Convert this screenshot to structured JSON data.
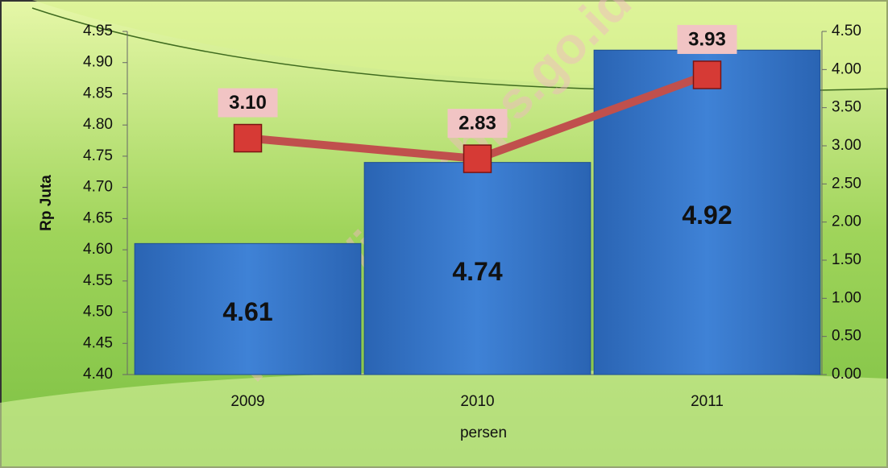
{
  "chart_data": {
    "type": "bar",
    "y_label": "Rp Juta",
    "x_label": "persen",
    "watermark": "https://jabar.bps.go.id",
    "categories": [
      "2009",
      "2010",
      "2011"
    ],
    "series": [
      {
        "type": "bar",
        "color": "#2f6fc4",
        "values": [
          4.61,
          4.74,
          4.92
        ]
      },
      {
        "type": "line",
        "axis": "y2",
        "color": "#c0504d",
        "values": [
          3.1,
          2.83,
          3.93
        ],
        "value_labels": [
          "3.10",
          "2.83",
          "3.93"
        ]
      }
    ],
    "ylim": [
      4.4,
      4.95
    ],
    "yticks": [
      {
        "value": 4.4,
        "label": "4.40"
      },
      4.45,
      {
        "value": 4.5,
        "label": "4.50"
      },
      4.55,
      {
        "value": 4.6,
        "label": "4.60"
      },
      4.65,
      {
        "value": 4.7,
        "label": "4.70"
      },
      4.75,
      {
        "value": 4.8,
        "label": "4.80"
      },
      4.85,
      {
        "value": 4.9,
        "label": "4.90"
      },
      4.95
    ],
    "y2lim": [
      0,
      4.5
    ],
    "y2ticks": [
      {
        "value": 0,
        "label": "0.00"
      },
      {
        "value": 0.5,
        "label": "0.50"
      },
      {
        "value": 1,
        "label": "1.00"
      },
      {
        "value": 1.5,
        "label": "1.50"
      },
      {
        "value": 2,
        "label": "2.00"
      },
      {
        "value": 2.5,
        "label": "2.50"
      },
      {
        "value": 3,
        "label": "3.00"
      },
      {
        "value": 3.5,
        "label": "3.50"
      },
      {
        "value": 4,
        "label": "4.00"
      },
      {
        "value": 4.5,
        "label": "4.50"
      }
    ]
  }
}
